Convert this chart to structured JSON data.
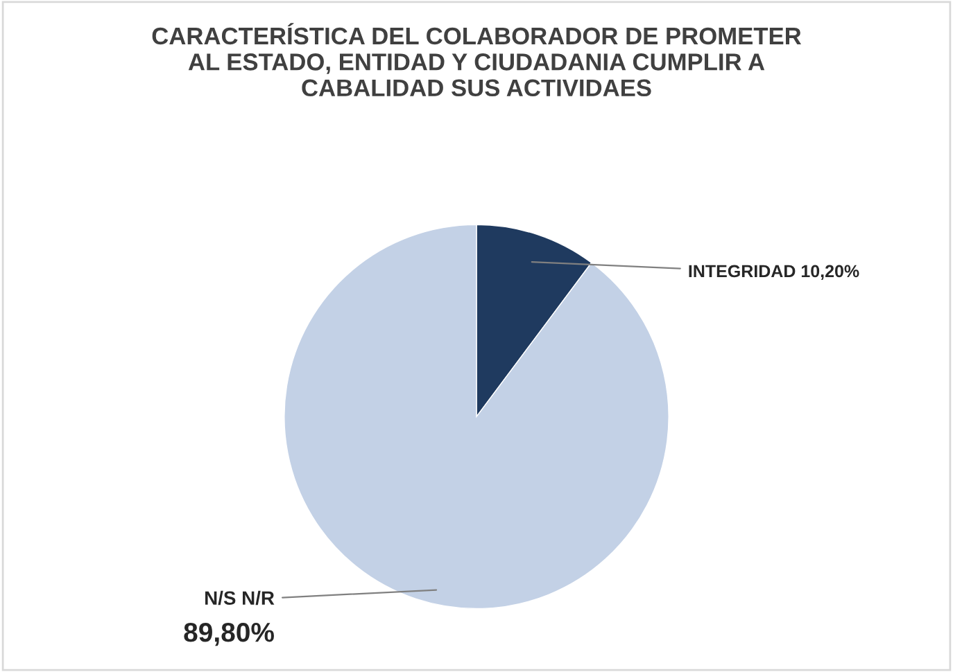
{
  "chart_data": {
    "type": "pie",
    "title": "CARACTERÍSTICA DEL COLABORADOR DE PROMETER\nAL ESTADO, ENTIDAD Y CIUDADANIA CUMPLIR A\nCABALIDAD SUS ACTIVIDAES",
    "categories": [
      "INTEGRIDAD",
      "N/S N/R"
    ],
    "values": [
      10.2,
      89.8
    ],
    "value_labels": [
      "10,20%",
      "89,80%"
    ],
    "colors": [
      "#1f3a5f",
      "#c3d1e6"
    ],
    "legend": false
  }
}
